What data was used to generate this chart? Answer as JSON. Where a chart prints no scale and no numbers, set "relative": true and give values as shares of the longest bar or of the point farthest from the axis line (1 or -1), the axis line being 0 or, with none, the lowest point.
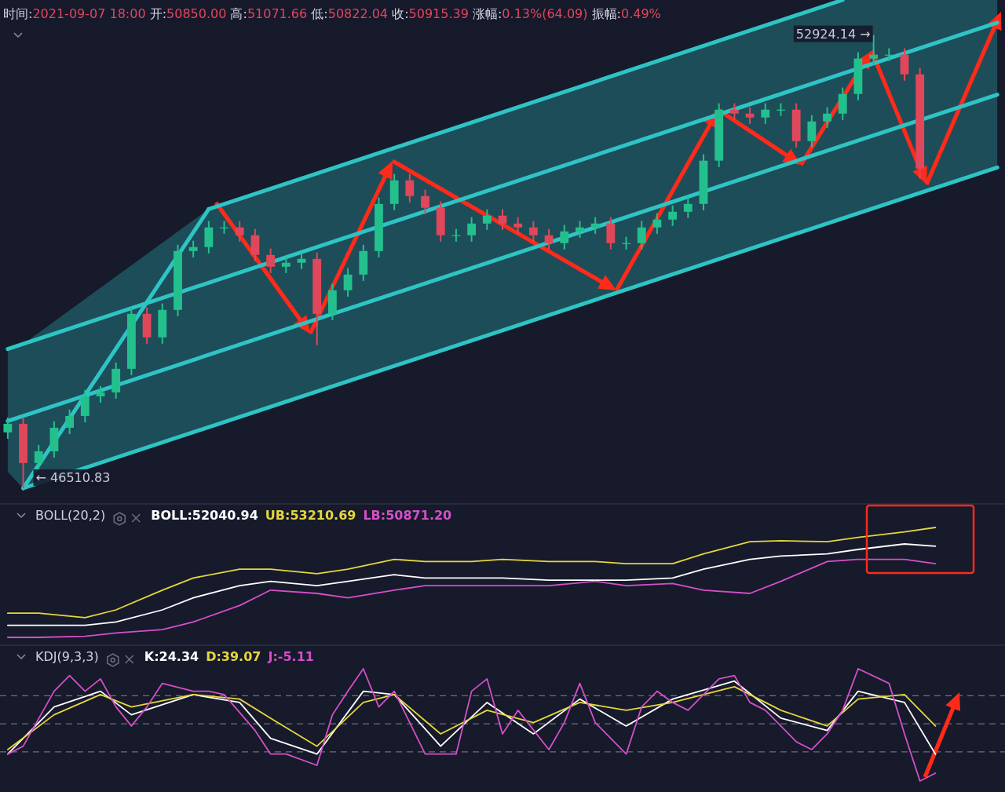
{
  "chart_data": [
    {
      "type": "candlestick",
      "annotations": [
        "时间:2021-09-07 18:00 开:50850.00 高:51071.66 低:50822.04 收:50915.39 涨幅:0.13%(64.09) 振幅:0.49%",
        "52924.14 →",
        "← 46510.83"
      ],
      "categories": [
        null,
        null,
        null,
        null,
        null,
        null,
        null,
        null,
        null,
        null,
        null,
        null,
        null,
        null,
        null,
        null,
        null,
        null,
        null,
        null,
        null,
        null,
        null,
        null,
        null,
        null,
        null,
        null,
        null,
        null,
        null,
        null,
        null,
        null,
        null,
        null,
        null,
        null,
        null,
        null,
        null,
        null,
        null,
        null,
        null,
        null,
        null,
        null,
        null,
        null,
        null,
        null,
        null,
        null,
        null,
        null,
        null,
        null,
        null,
        null,
        null,
        null,
        null,
        null,
        null
      ],
      "ohlc": [
        [
          47300,
          47512,
          47210,
          47422
        ],
        [
          47422,
          47512,
          46510.83,
          46866
        ],
        [
          46866,
          47123,
          46776,
          47033
        ],
        [
          47033,
          47456,
          46943,
          47366
        ],
        [
          47366,
          47623,
          47276,
          47533
        ],
        [
          47533,
          47901,
          47443,
          47811
        ],
        [
          47811,
          47957,
          47721,
          47867
        ],
        [
          47867,
          48290,
          47777,
          48200
        ],
        [
          48200,
          49068,
          48110,
          48978
        ],
        [
          48978,
          49068,
          48555,
          48645
        ],
        [
          48645,
          49124,
          48555,
          49034
        ],
        [
          49034,
          49957,
          48944,
          49867
        ],
        [
          49867,
          50013,
          49777,
          49923
        ],
        [
          49923,
          50291,
          49833,
          50201
        ],
        [
          50201,
          50291,
          50111,
          50201
        ],
        [
          50201,
          50291,
          50000,
          50090
        ],
        [
          50090,
          50180,
          49722,
          49812
        ],
        [
          49812,
          49902,
          49555,
          49645
        ],
        [
          49645,
          49791,
          49555,
          49701
        ],
        [
          49701,
          49846,
          49611,
          49756
        ],
        [
          49756,
          49846,
          48534,
          48978
        ],
        [
          48978,
          49402,
          48888,
          49312
        ],
        [
          49312,
          49624,
          49222,
          49534
        ],
        [
          49534,
          49957,
          49444,
          49867
        ],
        [
          49867,
          50624,
          49777,
          50534
        ],
        [
          50534,
          50958,
          50444,
          50868
        ],
        [
          50868,
          50958,
          50555,
          50645
        ],
        [
          50645,
          50735,
          50389,
          50479
        ],
        [
          50479,
          50569,
          50000,
          50090
        ],
        [
          50090,
          50180,
          50000,
          50090
        ],
        [
          50090,
          50346,
          50000,
          50256
        ],
        [
          50256,
          50458,
          50166,
          50368
        ],
        [
          50368,
          50458,
          50166,
          50256
        ],
        [
          50256,
          50346,
          50111,
          50201
        ],
        [
          50201,
          50291,
          50000,
          50090
        ],
        [
          50090,
          50180,
          49889,
          49979
        ],
        [
          49979,
          50235,
          49889,
          50145
        ],
        [
          50145,
          50291,
          50055,
          50201
        ],
        [
          50201,
          50346,
          50111,
          50256
        ],
        [
          50256,
          50346,
          49889,
          49979
        ],
        [
          49979,
          50069,
          49889,
          49979
        ],
        [
          49979,
          50291,
          49889,
          50201
        ],
        [
          50201,
          50402,
          50111,
          50312
        ],
        [
          50312,
          50513,
          50222,
          50423
        ],
        [
          50423,
          50624,
          50333,
          50534
        ],
        [
          50534,
          51236,
          50444,
          51146
        ],
        [
          51146,
          51958,
          51056,
          51868
        ],
        [
          51868,
          51958,
          51722,
          51812
        ],
        [
          51812,
          51902,
          51667,
          51757
        ],
        [
          51757,
          51958,
          51667,
          51868
        ],
        [
          51868,
          51958,
          51778,
          51868
        ],
        [
          51868,
          51958,
          51333,
          51423
        ],
        [
          51423,
          51791,
          51333,
          51701
        ],
        [
          51701,
          51902,
          51611,
          51812
        ],
        [
          51812,
          52180,
          51722,
          52090
        ],
        [
          52090,
          52681,
          52000,
          52591
        ],
        [
          52591,
          52924.14,
          52501,
          52646
        ],
        [
          52646,
          52736,
          52556,
          52646
        ],
        [
          52646,
          52736,
          52278,
          52368
        ],
        [
          52368,
          52458,
          50890,
          51034
        ],
        null,
        null,
        null,
        null,
        null
      ],
      "series": [
        {
          "type": "line",
          "color": "#2ec4c4",
          "values": [
            null,
            null,
            null,
            null,
            null,
            null,
            null,
            null,
            null,
            null,
            null,
            null,
            null,
            50460,
            null,
            null,
            null,
            null,
            null,
            null,
            null,
            null,
            null,
            null,
            null,
            null,
            null,
            null,
            null,
            null,
            null,
            null,
            null,
            null,
            null,
            null,
            null,
            null,
            null,
            null,
            null,
            null,
            null,
            null,
            null,
            null,
            null,
            null,
            null,
            null,
            null,
            null,
            null,
            null,
            53420,
            null,
            null,
            null,
            null,
            null,
            null,
            null,
            null,
            null,
            null
          ]
        },
        {
          "type": "line",
          "color": "#2ec4c4",
          "upper": [
            48480,
            48550,
            null,
            null,
            null,
            null,
            null,
            null,
            null,
            null,
            null,
            null,
            null,
            50460,
            null,
            null,
            null,
            null,
            null,
            null,
            null,
            null,
            null,
            null,
            null,
            null,
            null,
            null,
            null,
            null,
            null,
            null,
            null,
            null,
            null,
            null,
            null,
            null,
            null,
            null,
            null,
            null,
            null,
            null,
            null,
            null,
            null,
            null,
            null,
            null,
            null,
            null,
            null,
            null,
            53420,
            null,
            null,
            null,
            null,
            null,
            null,
            null,
            null,
            null,
            53420
          ],
          "lower": [
            46740,
            46510,
            null,
            null,
            null,
            null,
            null,
            null,
            null,
            null,
            null,
            null,
            null,
            47380,
            null,
            null,
            null,
            null,
            null,
            null,
            null,
            null,
            null,
            null,
            null,
            null,
            null,
            null,
            null,
            null,
            null,
            null,
            null,
            null,
            null,
            null,
            null,
            null,
            null,
            null,
            null,
            null,
            null,
            null,
            null,
            null,
            null,
            null,
            null,
            null,
            null,
            null,
            null,
            null,
            50330,
            null,
            null,
            null,
            null,
            null,
            null,
            null,
            null,
            null,
            51050
          ],
          "values": [
            48480,
            null,
            null,
            null,
            null,
            null,
            null,
            null,
            null,
            null,
            null,
            null,
            null,
            null,
            null,
            null,
            null,
            null,
            null,
            null,
            null,
            null,
            null,
            null,
            null,
            null,
            null,
            null,
            null,
            null,
            null,
            null,
            null,
            null,
            null,
            null,
            null,
            null,
            null,
            null,
            null,
            null,
            null,
            null,
            null,
            null,
            null,
            null,
            null,
            null,
            null,
            null,
            null,
            null,
            null,
            null,
            null,
            null,
            null,
            null,
            null,
            null,
            null,
            null,
            53100
          ]
        },
        {
          "type": "line",
          "color": "#2ec4c4",
          "values": [
            47460,
            null,
            null,
            null,
            null,
            null,
            null,
            null,
            null,
            null,
            null,
            null,
            null,
            null,
            null,
            null,
            null,
            null,
            null,
            null,
            null,
            null,
            null,
            null,
            null,
            null,
            null,
            null,
            null,
            null,
            null,
            null,
            null,
            null,
            null,
            null,
            null,
            null,
            null,
            null,
            null,
            null,
            null,
            null,
            null,
            null,
            null,
            null,
            null,
            null,
            null,
            null,
            null,
            null,
            null,
            null,
            null,
            null,
            null,
            null,
            null,
            null,
            null,
            null,
            52080
          ]
        },
        {
          "type": "line",
          "color": "#2ec4c4",
          "values": [
            null,
            46510,
            null,
            null,
            null,
            null,
            null,
            null,
            null,
            null,
            null,
            null,
            null,
            null,
            null,
            null,
            null,
            null,
            null,
            null,
            null,
            null,
            null,
            null,
            null,
            null,
            null,
            null,
            null,
            null,
            null,
            null,
            null,
            null,
            null,
            null,
            null,
            null,
            null,
            null,
            null,
            null,
            null,
            null,
            null,
            null,
            null,
            null,
            null,
            null,
            null,
            null,
            null,
            null,
            null,
            null,
            null,
            null,
            null,
            null,
            null,
            null,
            null,
            null,
            51050
          ]
        },
        {
          "type": "line",
          "color": "#2ec4c4",
          "values": [
            null,
            46510,
            null,
            null,
            null,
            null,
            null,
            null,
            null,
            null,
            null,
            null,
            null,
            50460,
            null,
            null,
            null,
            null,
            null,
            null,
            null,
            null,
            null,
            null,
            null,
            null,
            null,
            null,
            null,
            null,
            null,
            null,
            null,
            null,
            null,
            null,
            null,
            null,
            null,
            null,
            null,
            null,
            null,
            null,
            null,
            null,
            null,
            null,
            null,
            null,
            null,
            null,
            null,
            null,
            null,
            null,
            null,
            null,
            null,
            null,
            null,
            null,
            null,
            null,
            null
          ]
        }
      ]
    },
    {
      "type": "line",
      "relative": true,
      "title": "BOLL(20,2)",
      "legend": "top left",
      "categories": [
        null,
        null,
        null,
        null,
        null,
        null,
        null,
        null,
        null,
        null,
        null,
        null,
        null,
        null,
        null,
        null,
        null,
        null,
        null,
        null,
        null,
        null,
        null,
        null,
        null,
        null,
        null,
        null,
        null,
        null,
        null,
        null,
        null,
        null,
        null,
        null,
        null,
        null,
        null,
        null,
        null,
        null,
        null,
        null,
        null,
        null,
        null,
        null,
        null,
        null,
        null,
        null,
        null,
        null,
        null,
        null,
        null,
        null,
        null,
        null,
        null,
        null,
        null,
        null,
        null
      ],
      "series": [
        {
          "name": "BOLL:52040.94",
          "color": "#ffffff",
          "values": [
            0.11,
            null,
            0.11,
            null,
            null,
            0.11,
            null,
            0.14,
            null,
            null,
            0.25,
            null,
            0.36,
            null,
            null,
            0.47,
            null,
            0.51,
            null,
            null,
            0.47,
            null,
            0.51,
            null,
            null,
            0.57,
            null,
            0.54,
            null,
            null,
            0.54,
            null,
            0.54,
            null,
            null,
            0.52,
            null,
            null,
            0.52,
            null,
            0.52,
            null,
            null,
            0.54,
            null,
            0.62,
            null,
            null,
            0.71,
            null,
            0.74,
            null,
            null,
            0.76,
            null,
            0.8,
            null,
            null,
            0.85,
            null,
            0.83,
            null,
            null,
            null,
            null
          ]
        },
        {
          "name": "UB:53210.69",
          "color": "#e6d63c",
          "values": [
            0.22,
            null,
            0.22,
            null,
            null,
            0.18,
            null,
            0.25,
            null,
            null,
            0.43,
            null,
            0.54,
            null,
            null,
            0.62,
            null,
            0.62,
            null,
            null,
            0.58,
            null,
            0.62,
            null,
            null,
            0.71,
            null,
            0.69,
            null,
            null,
            0.69,
            null,
            0.71,
            null,
            null,
            0.69,
            null,
            null,
            0.69,
            null,
            0.67,
            null,
            null,
            0.67,
            null,
            0.76,
            null,
            null,
            0.87,
            null,
            0.88,
            null,
            null,
            0.87,
            null,
            0.91,
            null,
            null,
            0.96,
            null,
            1,
            null,
            null,
            null,
            null
          ]
        },
        {
          "name": "LB:50871.20",
          "color": "#d54fc8",
          "values": [
            0,
            null,
            0,
            null,
            null,
            0.01,
            null,
            0.04,
            null,
            null,
            0.07,
            null,
            0.14,
            null,
            null,
            0.29,
            null,
            0.43,
            null,
            null,
            0.4,
            null,
            0.36,
            null,
            null,
            0.43,
            null,
            0.47,
            null,
            null,
            0.47,
            null,
            0.47,
            null,
            null,
            0.47,
            null,
            null,
            0.51,
            null,
            0.47,
            null,
            null,
            0.49,
            null,
            0.43,
            null,
            null,
            0.4,
            null,
            0.51,
            null,
            null,
            0.69,
            null,
            0.71,
            null,
            null,
            0.71,
            null,
            0.67,
            null,
            null,
            null,
            null
          ]
        }
      ]
    },
    {
      "type": "line",
      "relative": true,
      "title": "KDJ(9,3,3)",
      "legend": "top left",
      "categories": [
        null,
        null,
        null,
        null,
        null,
        null,
        null,
        null,
        null,
        null,
        null,
        null,
        null,
        null,
        null,
        null,
        null,
        null,
        null,
        null,
        null,
        null,
        null,
        null,
        null,
        null,
        null,
        null,
        null,
        null,
        null,
        null,
        null,
        null,
        null,
        null,
        null,
        null,
        null,
        null,
        null,
        null,
        null,
        null,
        null,
        null,
        null,
        null,
        null,
        null,
        null,
        null,
        null,
        null,
        null,
        null,
        null,
        null,
        null,
        null,
        null,
        null,
        null,
        null,
        null
      ],
      "ref_lines": [
        {
          "axis": "y",
          "value": 0.76,
          "color": "#6b6f80",
          "line_style": "dashed"
        },
        {
          "axis": "y",
          "value": 0.51,
          "color": "#6b6f80",
          "line_style": "dashed"
        },
        {
          "axis": "y",
          "value": 0.26,
          "color": "#6b6f80",
          "line_style": "dashed"
        }
      ],
      "series": [
        {
          "name": "K:24.34",
          "color": "#ffffff",
          "values": [
            0.24,
            null,
            null,
            0.66,
            null,
            null,
            0.8,
            null,
            0.59,
            null,
            null,
            null,
            0.77,
            null,
            null,
            0.7,
            null,
            0.38,
            null,
            null,
            0.24,
            null,
            null,
            0.8,
            null,
            0.77,
            null,
            null,
            0.31,
            null,
            null,
            0.7,
            null,
            null,
            0.42,
            null,
            null,
            0.73,
            null,
            null,
            0.49,
            null,
            null,
            0.73,
            null,
            null,
            null,
            0.89,
            null,
            null,
            0.56,
            null,
            null,
            0.45,
            null,
            0.8,
            null,
            null,
            0.7,
            null,
            0.24,
            null,
            null,
            null,
            null
          ]
        },
        {
          "name": "D:39.07",
          "color": "#e6d63c",
          "values": [
            0.28,
            null,
            null,
            0.59,
            null,
            null,
            0.77,
            null,
            0.66,
            null,
            null,
            null,
            0.77,
            null,
            null,
            0.73,
            null,
            0.56,
            null,
            null,
            0.31,
            null,
            null,
            0.7,
            null,
            0.77,
            null,
            null,
            0.42,
            null,
            null,
            0.63,
            null,
            null,
            0.52,
            null,
            null,
            0.7,
            null,
            null,
            0.63,
            null,
            null,
            0.7,
            null,
            null,
            null,
            0.84,
            null,
            null,
            0.63,
            null,
            null,
            0.49,
            null,
            0.73,
            null,
            null,
            0.77,
            null,
            0.49,
            null,
            null,
            null,
            null
          ]
        },
        {
          "name": "J:-5.11",
          "color": "#d54fc8",
          "values": [
            0.24,
            0.31,
            null,
            0.8,
            0.94,
            0.8,
            0.91,
            0.66,
            0.49,
            0.66,
            0.87,
            null,
            0.8,
            0.8,
            0.77,
            null,
            0.45,
            0.24,
            0.24,
            null,
            0.14,
            0.59,
            0.8,
            1,
            0.66,
            0.8,
            0.52,
            0.24,
            null,
            0.24,
            0.8,
            0.91,
            0.42,
            0.63,
            null,
            0.28,
            0.52,
            0.87,
            0.52,
            null,
            0.24,
            0.66,
            0.8,
            0.7,
            0.63,
            null,
            0.91,
            0.94,
            0.7,
            0.63,
            null,
            0.35,
            0.28,
            0.42,
            0.63,
            1,
            null,
            0.87,
            0.42,
            0,
            0.07,
            null,
            null,
            null,
            null
          ]
        }
      ]
    }
  ]
}
